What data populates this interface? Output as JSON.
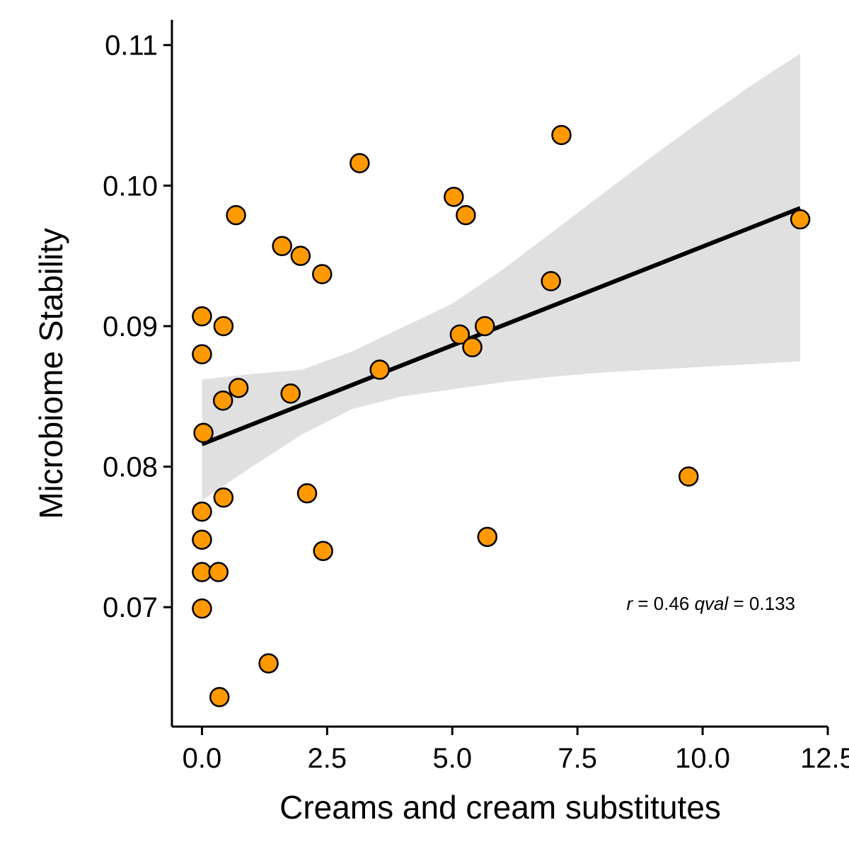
{
  "chart_data": {
    "type": "scatter",
    "title": "",
    "xlabel": "Creams and cream substitutes",
    "ylabel": "Microbiome Stability",
    "xlim": [
      -0.6,
      12.5
    ],
    "ylim": [
      0.0615,
      0.1118
    ],
    "x_ticks": [
      {
        "value": 0.0,
        "label": "0.0"
      },
      {
        "value": 2.5,
        "label": "2.5"
      },
      {
        "value": 5.0,
        "label": "5.0"
      },
      {
        "value": 7.5,
        "label": "7.5"
      },
      {
        "value": 10.0,
        "label": "10.0"
      },
      {
        "value": 12.5,
        "label": "12.5"
      }
    ],
    "y_ticks": [
      {
        "value": 0.07,
        "label": "0.07"
      },
      {
        "value": 0.08,
        "label": "0.08"
      },
      {
        "value": 0.09,
        "label": "0.09"
      },
      {
        "value": 0.1,
        "label": "0.10"
      },
      {
        "value": 0.11,
        "label": "0.11"
      }
    ],
    "point_color": "#FF9900",
    "point_stroke": "#000000",
    "band_color": "#E0E0E0",
    "fit_color": "#000000",
    "grid": false,
    "points": [
      {
        "x": 0.0,
        "y": 0.0907
      },
      {
        "x": 0.0,
        "y": 0.088
      },
      {
        "x": 0.03,
        "y": 0.0824
      },
      {
        "x": 0.0,
        "y": 0.0768
      },
      {
        "x": 0.0,
        "y": 0.0748
      },
      {
        "x": 0.0,
        "y": 0.0725
      },
      {
        "x": 0.0,
        "y": 0.0699
      },
      {
        "x": 0.33,
        "y": 0.0725
      },
      {
        "x": 0.35,
        "y": 0.0636
      },
      {
        "x": 0.42,
        "y": 0.0847
      },
      {
        "x": 0.43,
        "y": 0.09
      },
      {
        "x": 0.43,
        "y": 0.0778
      },
      {
        "x": 0.68,
        "y": 0.0979
      },
      {
        "x": 0.73,
        "y": 0.0856
      },
      {
        "x": 1.33,
        "y": 0.066
      },
      {
        "x": 1.6,
        "y": 0.0957
      },
      {
        "x": 1.77,
        "y": 0.0852
      },
      {
        "x": 1.97,
        "y": 0.095
      },
      {
        "x": 2.1,
        "y": 0.0781
      },
      {
        "x": 2.4,
        "y": 0.0937
      },
      {
        "x": 2.42,
        "y": 0.074
      },
      {
        "x": 3.15,
        "y": 0.1016
      },
      {
        "x": 3.55,
        "y": 0.0869
      },
      {
        "x": 5.03,
        "y": 0.0992
      },
      {
        "x": 5.15,
        "y": 0.0894
      },
      {
        "x": 5.27,
        "y": 0.0979
      },
      {
        "x": 5.4,
        "y": 0.0885
      },
      {
        "x": 5.65,
        "y": 0.09
      },
      {
        "x": 5.7,
        "y": 0.075
      },
      {
        "x": 6.97,
        "y": 0.0932
      },
      {
        "x": 7.18,
        "y": 0.1036
      },
      {
        "x": 9.72,
        "y": 0.0793
      },
      {
        "x": 11.95,
        "y": 0.0976
      }
    ],
    "fit_line": {
      "x": [
        0.0,
        11.95
      ],
      "y": [
        0.0816,
        0.0984
      ]
    },
    "confidence_band": {
      "x": [
        0.0,
        1.0,
        2.0,
        3.0,
        4.0,
        5.0,
        6.0,
        7.0,
        8.0,
        9.0,
        10.0,
        11.0,
        11.95
      ],
      "lower": [
        0.0776,
        0.08,
        0.0823,
        0.0841,
        0.085,
        0.0855,
        0.086,
        0.0864,
        0.0867,
        0.0869,
        0.0871,
        0.0873,
        0.0875
      ],
      "upper": [
        0.0862,
        0.0866,
        0.0869,
        0.0882,
        0.0899,
        0.0916,
        0.094,
        0.0967,
        0.0994,
        0.1021,
        0.1047,
        0.1072,
        0.1094
      ]
    },
    "annotation": {
      "r_symbol": "r",
      "r_text": " = 0.46 ",
      "q_symbol": "qval",
      "q_text": " = 0.133"
    }
  }
}
